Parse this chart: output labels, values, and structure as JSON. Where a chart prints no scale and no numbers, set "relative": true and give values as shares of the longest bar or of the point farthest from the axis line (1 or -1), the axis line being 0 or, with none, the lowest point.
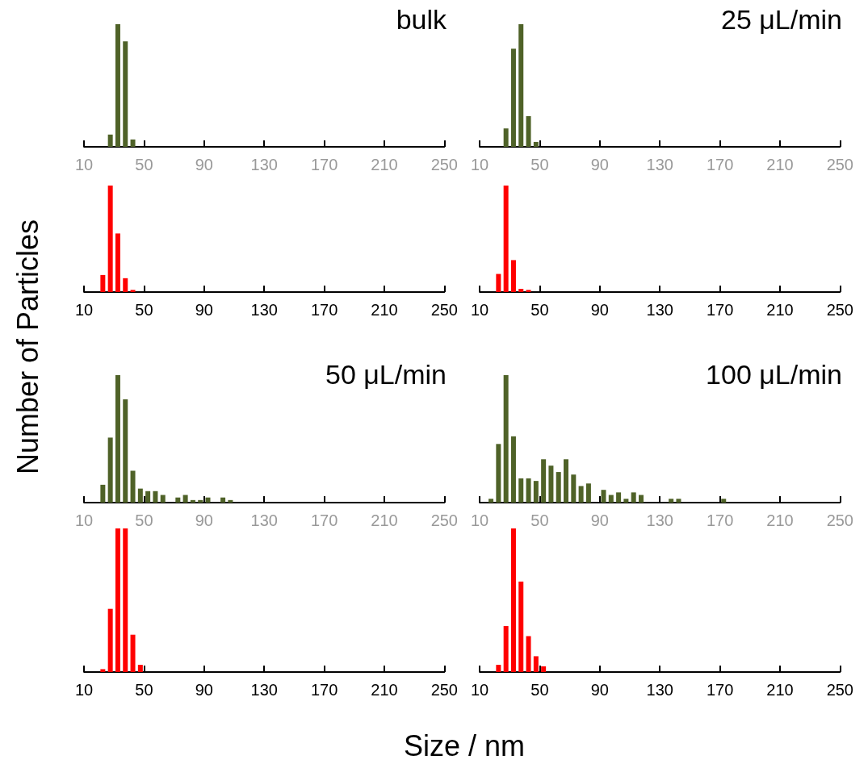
{
  "chart_data": [
    {
      "type": "bar",
      "title": "bulk",
      "relative": true,
      "ylabel": "Number of Particles",
      "xlim": [
        10,
        250
      ],
      "xticks": [
        10,
        50,
        90,
        130,
        170,
        210,
        250
      ],
      "tick_labels": "x",
      "grid": false,
      "color": "#4f6228",
      "x": [
        27.5,
        32.5,
        37.5,
        42.5
      ],
      "values": [
        0.1,
        1,
        0.86,
        0.06
      ]
    },
    {
      "type": "bar",
      "title": "25 μL/min",
      "relative": true,
      "xlim": [
        10,
        250
      ],
      "xticks": [
        10,
        50,
        90,
        130,
        170,
        210,
        250
      ],
      "tick_labels": "x",
      "grid": false,
      "color": "#4f6228",
      "x": [
        27.5,
        32.5,
        37.5,
        42.5,
        47.5
      ],
      "values": [
        0.15,
        0.8,
        1,
        0.25,
        0.04
      ]
    },
    {
      "type": "bar",
      "relative": true,
      "xlim": [
        10,
        250
      ],
      "xticks": [
        10,
        50,
        90,
        130,
        170,
        210,
        250
      ],
      "tick_labels": "x",
      "grid": false,
      "color": "#ff0000",
      "x": [
        22.5,
        27.5,
        32.5,
        37.5,
        42.5
      ],
      "values": [
        0.16,
        1,
        0.55,
        0.13,
        0.02
      ]
    },
    {
      "type": "bar",
      "relative": true,
      "xlim": [
        10,
        250
      ],
      "xticks": [
        10,
        50,
        90,
        130,
        170,
        210,
        250
      ],
      "tick_labels": "x",
      "grid": false,
      "color": "#ff0000",
      "x": [
        22.5,
        27.5,
        32.5,
        37.5,
        42.5
      ],
      "values": [
        0.17,
        1,
        0.3,
        0.03,
        0.02
      ]
    },
    {
      "type": "bar",
      "title": "50 μL/min",
      "relative": true,
      "xlim": [
        10,
        250
      ],
      "xticks": [
        10,
        50,
        90,
        130,
        170,
        210,
        250
      ],
      "tick_labels": "x",
      "grid": false,
      "color": "#4f6228",
      "x": [
        22.5,
        27.5,
        32.5,
        37.5,
        42.5,
        47.5,
        52.5,
        57.5,
        62.5,
        72.5,
        77.5,
        82.5,
        87.5,
        92.5,
        102.5,
        107.5
      ],
      "values": [
        0.14,
        0.51,
        1,
        0.81,
        0.25,
        0.11,
        0.09,
        0.09,
        0.06,
        0.04,
        0.06,
        0.02,
        0.02,
        0.04,
        0.04,
        0.02
      ]
    },
    {
      "type": "bar",
      "title": "100 μL/min",
      "relative": true,
      "xlim": [
        10,
        250
      ],
      "xticks": [
        10,
        50,
        90,
        130,
        170,
        210,
        250
      ],
      "tick_labels": "x",
      "grid": false,
      "color": "#4f6228",
      "x": [
        17.5,
        22.5,
        27.5,
        32.5,
        37.5,
        42.5,
        47.5,
        52.5,
        57.5,
        62.5,
        67.5,
        72.5,
        77.5,
        82.5,
        92.5,
        97.5,
        102.5,
        107.5,
        112.5,
        117.5,
        137.5,
        142.5,
        172.5
      ],
      "values": [
        0.03,
        0.46,
        1,
        0.52,
        0.19,
        0.19,
        0.17,
        0.34,
        0.29,
        0.24,
        0.34,
        0.22,
        0.13,
        0.15,
        0.1,
        0.06,
        0.08,
        0.03,
        0.08,
        0.06,
        0.03,
        0.03,
        0.03
      ]
    },
    {
      "type": "bar",
      "relative": true,
      "xlim": [
        10,
        250
      ],
      "xticks": [
        10,
        50,
        90,
        130,
        170,
        210,
        250
      ],
      "tick_labels": "x",
      "grid": false,
      "color": "#ff0000",
      "x": [
        22.5,
        27.5,
        32.5,
        37.5,
        42.5,
        47.5
      ],
      "values": [
        0.02,
        0.44,
        1,
        1,
        0.26,
        0.05
      ]
    },
    {
      "type": "bar",
      "xlabel": "Size / nm",
      "relative": true,
      "xlim": [
        10,
        250
      ],
      "xticks": [
        10,
        50,
        90,
        130,
        170,
        210,
        250
      ],
      "tick_labels": "x",
      "grid": false,
      "color": "#ff0000",
      "x": [
        22.5,
        27.5,
        32.5,
        37.5,
        42.5,
        47.5,
        52.5
      ],
      "values": [
        0.05,
        0.32,
        1,
        0.63,
        0.25,
        0.11,
        0.04
      ]
    }
  ]
}
